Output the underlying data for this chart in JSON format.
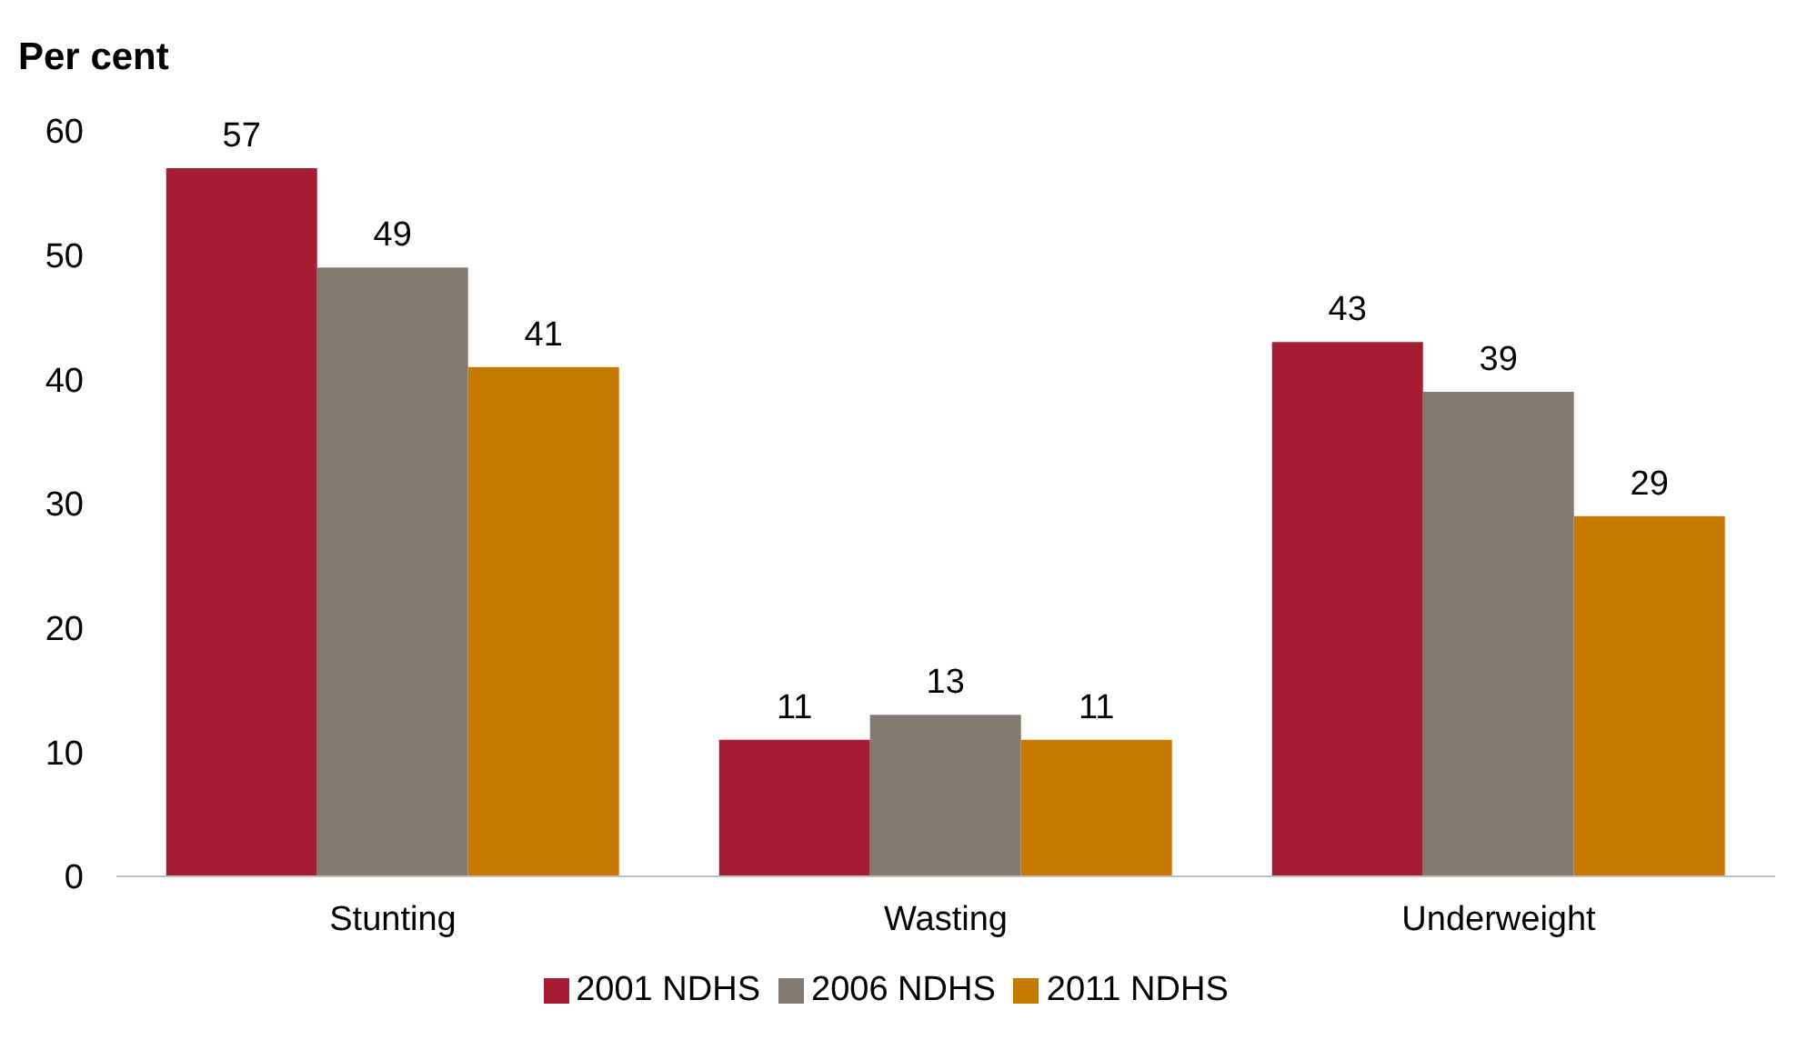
{
  "chart_data": {
    "type": "bar",
    "ylabel": "Per cent",
    "categories": [
      "Stunting",
      "Wasting",
      "Underweight"
    ],
    "series": [
      {
        "name": "2001 NDHS",
        "color": "#a61c34",
        "values": [
          57,
          11,
          43
        ]
      },
      {
        "name": "2006 NDHS",
        "color": "#857a70",
        "values": [
          49,
          13,
          39
        ]
      },
      {
        "name": "2011 NDHS",
        "color": "#c77a00",
        "values": [
          41,
          11,
          29
        ]
      }
    ],
    "ylim": [
      0,
      60
    ],
    "yticks": [
      0,
      10,
      20,
      30,
      40,
      50,
      60
    ],
    "data_labels": true,
    "grid": false,
    "legend": "bottom"
  }
}
